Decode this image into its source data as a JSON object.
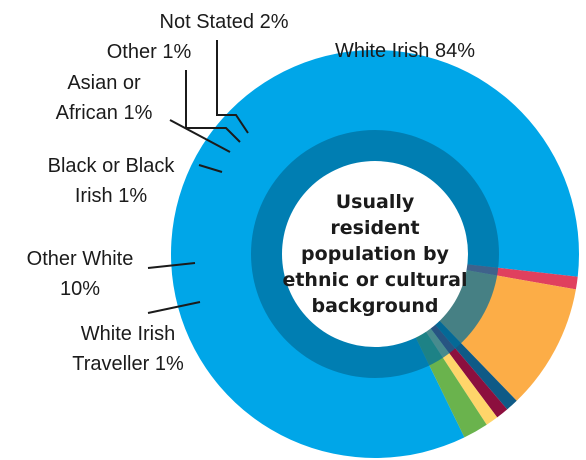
{
  "chart_data": {
    "type": "pie",
    "title": "Usually resident population by ethnic or cultural background",
    "title_lines": [
      "Usually",
      "resident",
      "population by",
      "ethnic or cultural",
      "background"
    ],
    "slices": [
      {
        "key": "white_irish",
        "label": "White Irish 84%",
        "value": 84,
        "color": "#00a6e8"
      },
      {
        "key": "traveller",
        "label": "White Irish Traveller 1%",
        "label_lines": [
          "White Irish",
          "Traveller 1%"
        ],
        "value": 1,
        "color": "#e0405e"
      },
      {
        "key": "other_white",
        "label": "Other White 10%",
        "label_lines": [
          "Other White",
          "10%"
        ],
        "value": 10,
        "color": "#fcad47"
      },
      {
        "key": "black",
        "label": "Black or Black Irish 1%",
        "label_lines": [
          "Black or Black",
          "Irish 1%"
        ],
        "value": 1,
        "color": "#0f5a86"
      },
      {
        "key": "asian",
        "label": "Asian or African 1%",
        "label_lines": [
          "Asian or",
          "African 1%"
        ],
        "value": 1,
        "color": "#8c0f3e"
      },
      {
        "key": "other",
        "label": "Other 1%",
        "value": 1,
        "color": "#ffd56a"
      },
      {
        "key": "not_stated",
        "label": "Not Stated 2%",
        "value": 2,
        "color": "#6ab34d"
      }
    ]
  }
}
